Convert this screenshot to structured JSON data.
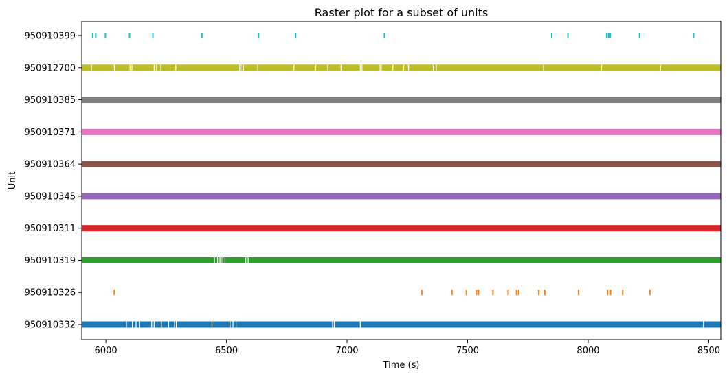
{
  "chart_data": {
    "type": "raster",
    "title": "Raster plot for a subset of units",
    "xlabel": "Time (s)",
    "ylabel": "Unit",
    "xlim": [
      5900,
      8550
    ],
    "xticks": [
      6000,
      6500,
      7000,
      7500,
      8000,
      8500
    ],
    "grid": false,
    "units": [
      {
        "label": "950910332",
        "color": "#1f77b4",
        "mode": "dense",
        "gaps": [
          6085,
          6110,
          6125,
          6140,
          6190,
          6200,
          6230,
          6260,
          6285,
          6292,
          6440,
          6515,
          6527,
          6540,
          6940,
          6947,
          7055,
          8478
        ]
      },
      {
        "label": "950910326",
        "color": "#ff7f0e",
        "mode": "sparse",
        "spikes": [
          6035,
          7310,
          7435,
          7495,
          7537,
          7545,
          7605,
          7668,
          7703,
          7712,
          7795,
          7820,
          7960,
          8080,
          8093,
          8143,
          8256
        ]
      },
      {
        "label": "950910319",
        "color": "#2ca02c",
        "mode": "dense",
        "gaps": [
          6450,
          6463,
          6473,
          6478,
          6485,
          6494,
          6580,
          6590
        ]
      },
      {
        "label": "950910311",
        "color": "#d62728",
        "mode": "dense",
        "gaps": []
      },
      {
        "label": "950910345",
        "color": "#9467bd",
        "mode": "dense",
        "gaps": []
      },
      {
        "label": "950910364",
        "color": "#8c564b",
        "mode": "dense",
        "gaps": []
      },
      {
        "label": "950910371",
        "color": "#e377c2",
        "mode": "dense",
        "gaps": []
      },
      {
        "label": "950910385",
        "color": "#7f7f7f",
        "mode": "dense",
        "gaps": []
      },
      {
        "label": "950912700",
        "color": "#bcbd22",
        "mode": "dense",
        "gaps": [
          5940,
          6035,
          6100,
          6108,
          6200,
          6210,
          6228,
          6290,
          6555,
          6560,
          6570,
          6630,
          6780,
          6870,
          6920,
          6975,
          7055,
          7062,
          7137,
          7142,
          7190,
          7235,
          7255,
          7358,
          7370,
          7815,
          8055,
          8300
        ]
      },
      {
        "label": "950910399",
        "color": "#17becf",
        "mode": "sparse",
        "spikes": [
          5945,
          5958,
          5998,
          6098,
          6195,
          6398,
          6633,
          6787,
          7155,
          7849,
          7916,
          8077,
          8084,
          8091,
          8213,
          8437
        ]
      }
    ]
  }
}
